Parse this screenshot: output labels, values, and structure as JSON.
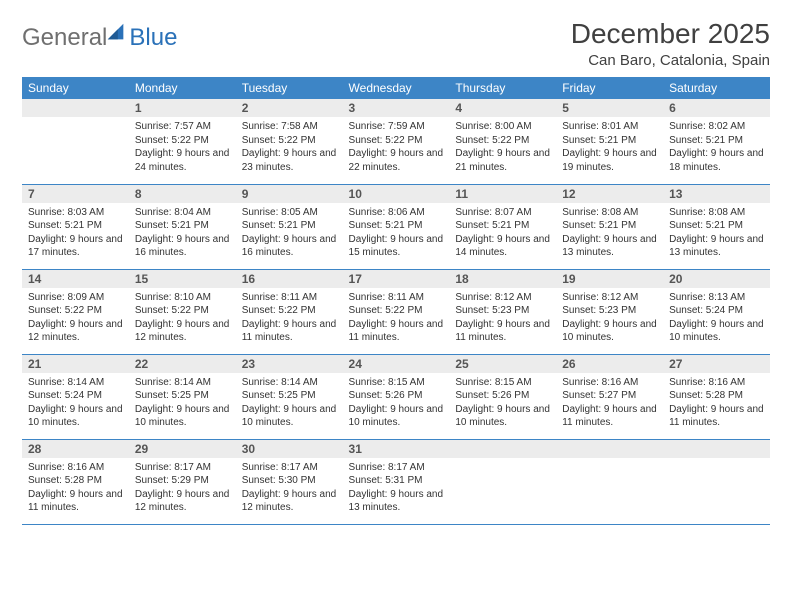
{
  "brand": {
    "general": "General",
    "blue": "Blue"
  },
  "title": {
    "month": "December 2025",
    "location": "Can Baro, Catalonia, Spain"
  },
  "colors": {
    "header_bg": "#3d85c6",
    "header_text": "#ffffff",
    "daynum_bg": "#ececec",
    "daynum_text": "#555555",
    "body_text": "#333333",
    "rule": "#3d85c6",
    "logo_gray": "#6f6f6f",
    "logo_blue": "#2a71b8"
  },
  "weekdays": [
    "Sunday",
    "Monday",
    "Tuesday",
    "Wednesday",
    "Thursday",
    "Friday",
    "Saturday"
  ],
  "weeks": [
    [
      null,
      {
        "n": "1",
        "sr": "7:57 AM",
        "ss": "5:22 PM",
        "dl": "9 hours and 24 minutes."
      },
      {
        "n": "2",
        "sr": "7:58 AM",
        "ss": "5:22 PM",
        "dl": "9 hours and 23 minutes."
      },
      {
        "n": "3",
        "sr": "7:59 AM",
        "ss": "5:22 PM",
        "dl": "9 hours and 22 minutes."
      },
      {
        "n": "4",
        "sr": "8:00 AM",
        "ss": "5:22 PM",
        "dl": "9 hours and 21 minutes."
      },
      {
        "n": "5",
        "sr": "8:01 AM",
        "ss": "5:21 PM",
        "dl": "9 hours and 19 minutes."
      },
      {
        "n": "6",
        "sr": "8:02 AM",
        "ss": "5:21 PM",
        "dl": "9 hours and 18 minutes."
      }
    ],
    [
      {
        "n": "7",
        "sr": "8:03 AM",
        "ss": "5:21 PM",
        "dl": "9 hours and 17 minutes."
      },
      {
        "n": "8",
        "sr": "8:04 AM",
        "ss": "5:21 PM",
        "dl": "9 hours and 16 minutes."
      },
      {
        "n": "9",
        "sr": "8:05 AM",
        "ss": "5:21 PM",
        "dl": "9 hours and 16 minutes."
      },
      {
        "n": "10",
        "sr": "8:06 AM",
        "ss": "5:21 PM",
        "dl": "9 hours and 15 minutes."
      },
      {
        "n": "11",
        "sr": "8:07 AM",
        "ss": "5:21 PM",
        "dl": "9 hours and 14 minutes."
      },
      {
        "n": "12",
        "sr": "8:08 AM",
        "ss": "5:21 PM",
        "dl": "9 hours and 13 minutes."
      },
      {
        "n": "13",
        "sr": "8:08 AM",
        "ss": "5:21 PM",
        "dl": "9 hours and 13 minutes."
      }
    ],
    [
      {
        "n": "14",
        "sr": "8:09 AM",
        "ss": "5:22 PM",
        "dl": "9 hours and 12 minutes."
      },
      {
        "n": "15",
        "sr": "8:10 AM",
        "ss": "5:22 PM",
        "dl": "9 hours and 12 minutes."
      },
      {
        "n": "16",
        "sr": "8:11 AM",
        "ss": "5:22 PM",
        "dl": "9 hours and 11 minutes."
      },
      {
        "n": "17",
        "sr": "8:11 AM",
        "ss": "5:22 PM",
        "dl": "9 hours and 11 minutes."
      },
      {
        "n": "18",
        "sr": "8:12 AM",
        "ss": "5:23 PM",
        "dl": "9 hours and 11 minutes."
      },
      {
        "n": "19",
        "sr": "8:12 AM",
        "ss": "5:23 PM",
        "dl": "9 hours and 10 minutes."
      },
      {
        "n": "20",
        "sr": "8:13 AM",
        "ss": "5:24 PM",
        "dl": "9 hours and 10 minutes."
      }
    ],
    [
      {
        "n": "21",
        "sr": "8:14 AM",
        "ss": "5:24 PM",
        "dl": "9 hours and 10 minutes."
      },
      {
        "n": "22",
        "sr": "8:14 AM",
        "ss": "5:25 PM",
        "dl": "9 hours and 10 minutes."
      },
      {
        "n": "23",
        "sr": "8:14 AM",
        "ss": "5:25 PM",
        "dl": "9 hours and 10 minutes."
      },
      {
        "n": "24",
        "sr": "8:15 AM",
        "ss": "5:26 PM",
        "dl": "9 hours and 10 minutes."
      },
      {
        "n": "25",
        "sr": "8:15 AM",
        "ss": "5:26 PM",
        "dl": "9 hours and 10 minutes."
      },
      {
        "n": "26",
        "sr": "8:16 AM",
        "ss": "5:27 PM",
        "dl": "9 hours and 11 minutes."
      },
      {
        "n": "27",
        "sr": "8:16 AM",
        "ss": "5:28 PM",
        "dl": "9 hours and 11 minutes."
      }
    ],
    [
      {
        "n": "28",
        "sr": "8:16 AM",
        "ss": "5:28 PM",
        "dl": "9 hours and 11 minutes."
      },
      {
        "n": "29",
        "sr": "8:17 AM",
        "ss": "5:29 PM",
        "dl": "9 hours and 12 minutes."
      },
      {
        "n": "30",
        "sr": "8:17 AM",
        "ss": "5:30 PM",
        "dl": "9 hours and 12 minutes."
      },
      {
        "n": "31",
        "sr": "8:17 AM",
        "ss": "5:31 PM",
        "dl": "9 hours and 13 minutes."
      },
      null,
      null,
      null
    ]
  ],
  "labels": {
    "sunrise": "Sunrise: ",
    "sunset": "Sunset: ",
    "daylight": "Daylight: "
  }
}
